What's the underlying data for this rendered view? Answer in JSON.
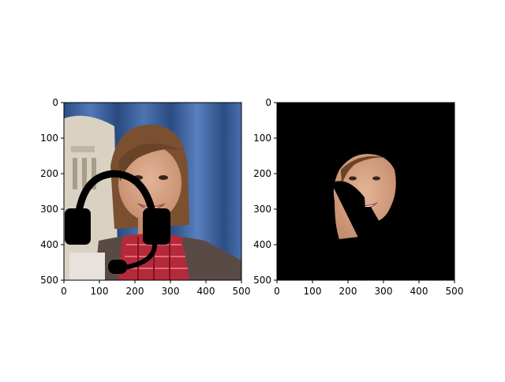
{
  "chart_data": [
    {
      "type": "image",
      "content": "photo of smiling woman with brown hair in front of blue curtain, with black headset icon overlaid",
      "xlim": [
        0,
        500
      ],
      "ylim": [
        500,
        0
      ],
      "xticks": [
        "0",
        "100",
        "200",
        "300",
        "400",
        "500"
      ],
      "yticks": [
        "0",
        "100",
        "200",
        "300",
        "400",
        "500"
      ]
    },
    {
      "type": "image",
      "content": "masked result: only face region visible on black background, headset overlay partially cut out",
      "xlim": [
        0,
        500
      ],
      "ylim": [
        500,
        0
      ],
      "xticks": [
        "0",
        "100",
        "200",
        "300",
        "400",
        "500"
      ],
      "yticks": [
        "0",
        "100",
        "200",
        "300",
        "400",
        "500"
      ]
    }
  ],
  "colors": {
    "curtain": "#3a5f9a",
    "curtain_dark": "#22406f",
    "skin": "#d8a383",
    "hair": "#7a5030",
    "shirt_red": "#b52a3a",
    "jacket": "#5a4a45",
    "mask_bg": "#000000",
    "headset": "#000000"
  }
}
